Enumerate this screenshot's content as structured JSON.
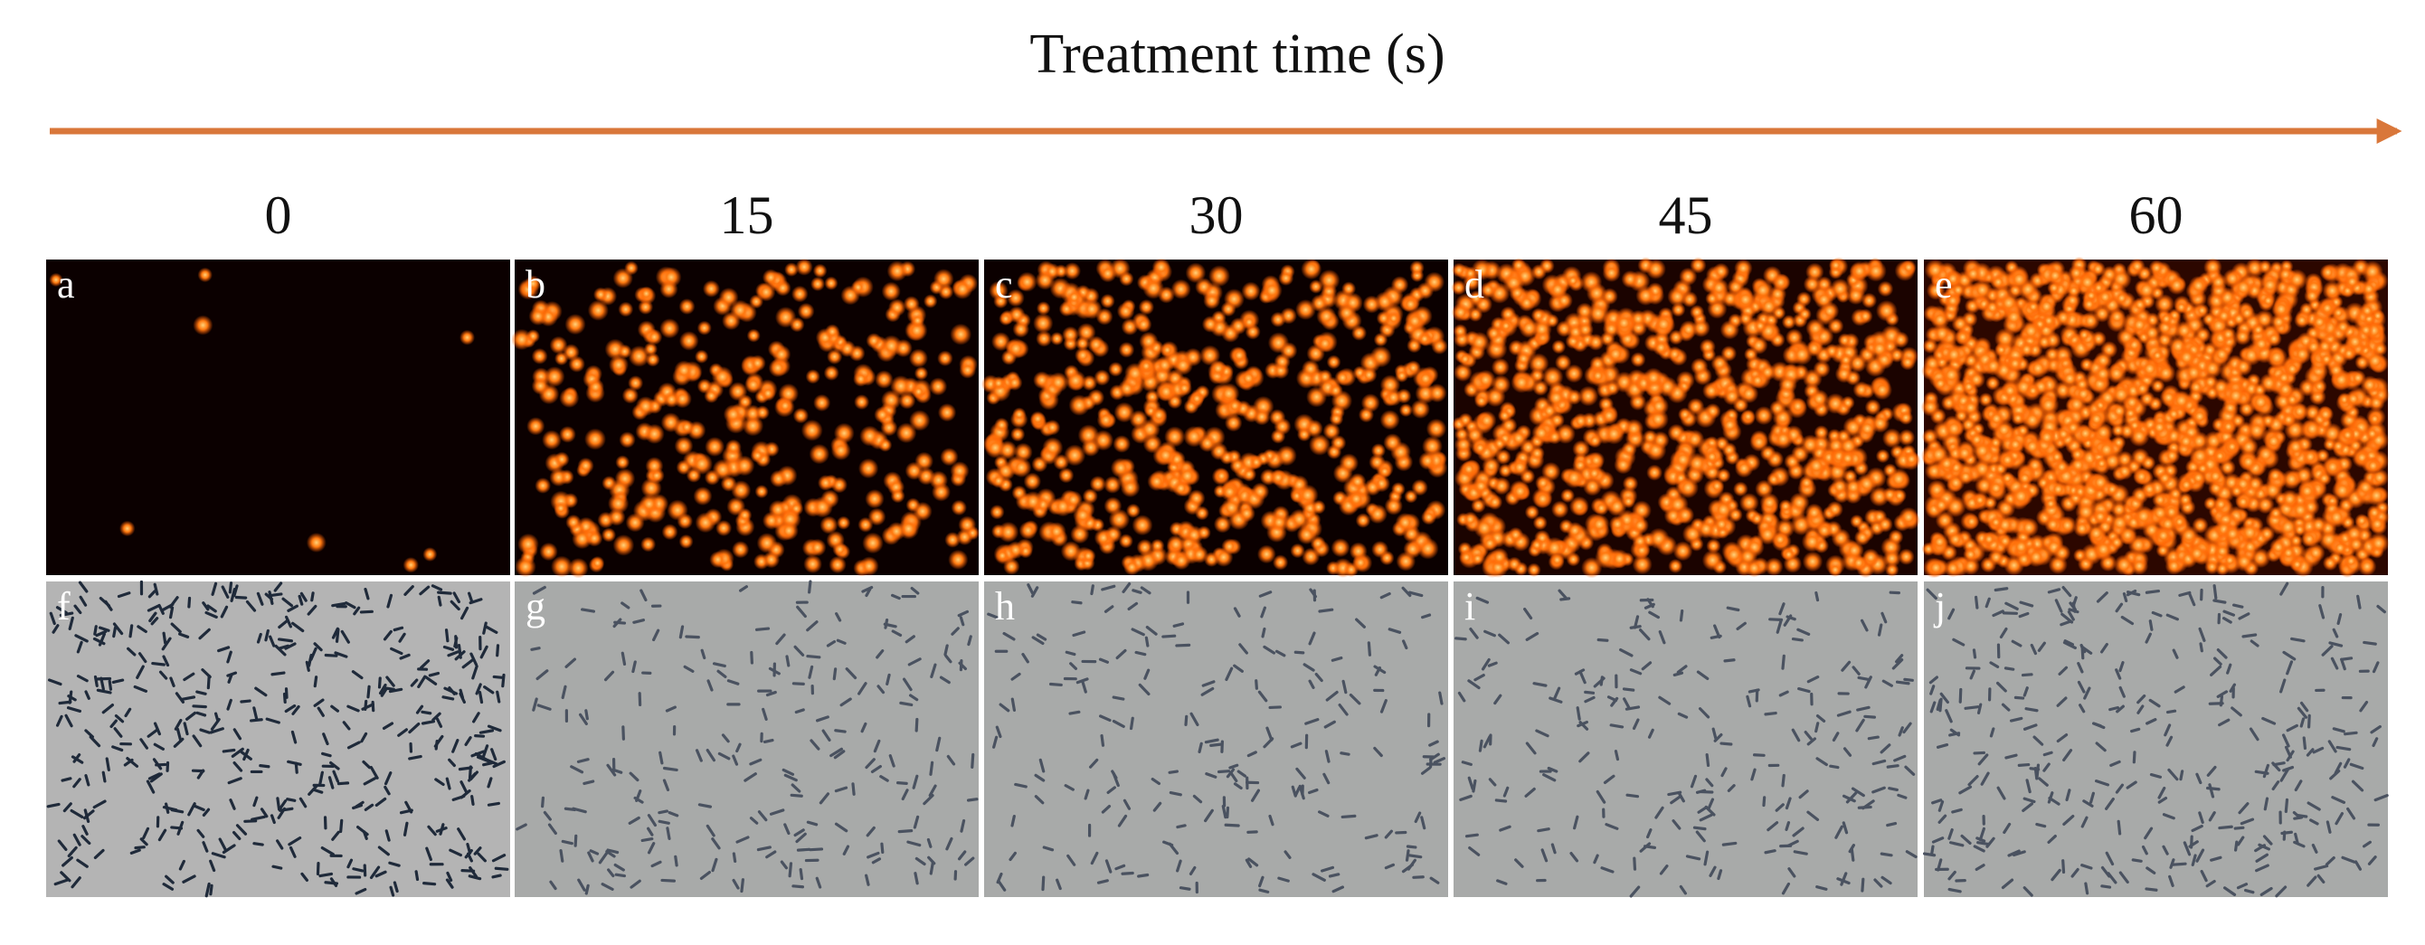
{
  "title": "Treatment time (s)",
  "columns": [
    {
      "time": "0",
      "fluorescence": "a",
      "brightfield": "f"
    },
    {
      "time": "15",
      "fluorescence": "b",
      "brightfield": "g"
    },
    {
      "time": "30",
      "fluorescence": "c",
      "brightfield": "h"
    },
    {
      "time": "45",
      "fluorescence": "d",
      "brightfield": "i"
    },
    {
      "time": "60",
      "fluorescence": "e",
      "brightfield": "j"
    }
  ]
}
